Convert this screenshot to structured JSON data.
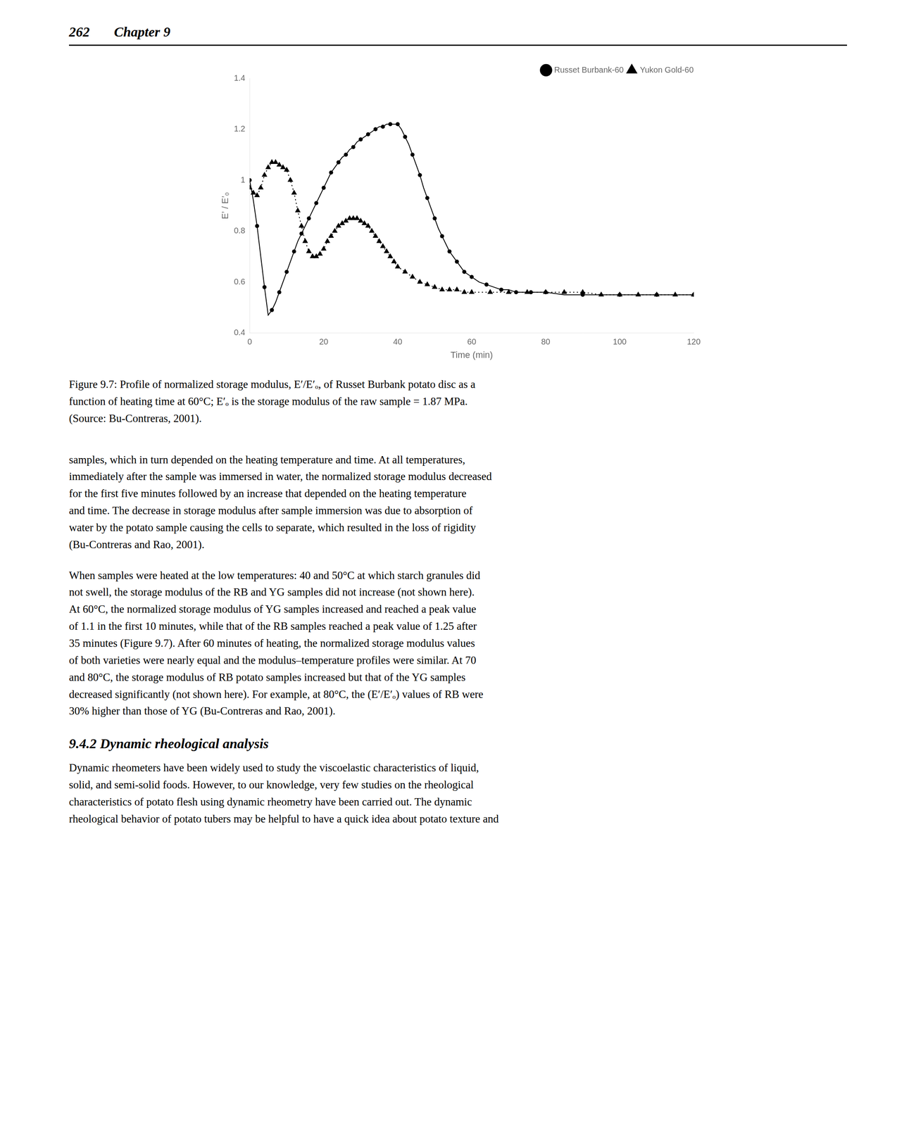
{
  "chart_data": {
    "type": "line",
    "x_label": "Time (min)",
    "y_label": "E’ / E’₀",
    "xlim": [
      0,
      120
    ],
    "ylim": [
      0.4,
      1.4
    ],
    "xticks": [
      0,
      20,
      40,
      60,
      80,
      100,
      120
    ],
    "yticks": [
      0.4,
      0.6,
      0.8,
      1,
      1.2,
      1.4
    ],
    "grid": false,
    "legend": "upper right",
    "series": [
      {
        "name": "Russet Burbank-60",
        "color": "black",
        "marker": "circle",
        "line_style": "solid",
        "x": [
          0,
          1,
          2,
          3,
          4,
          5,
          6,
          7,
          8,
          9,
          10,
          11,
          12,
          13,
          14,
          15,
          16,
          17,
          18,
          19,
          20,
          21,
          22,
          23,
          24,
          25,
          26,
          27,
          28,
          29,
          30,
          31,
          32,
          33,
          34,
          35,
          36,
          37,
          38,
          39,
          40,
          41,
          42,
          43,
          44,
          45,
          46,
          47,
          48,
          49,
          50,
          51,
          52,
          53,
          54,
          55,
          56,
          57,
          58,
          59,
          60,
          62,
          64,
          66,
          68,
          70,
          72,
          74,
          76,
          78,
          80,
          85,
          90,
          95,
          100,
          105,
          110,
          115,
          120
        ],
        "values": [
          1.0,
          0.92,
          0.82,
          0.7,
          0.58,
          0.47,
          0.49,
          0.52,
          0.56,
          0.6,
          0.64,
          0.68,
          0.72,
          0.76,
          0.79,
          0.82,
          0.85,
          0.88,
          0.91,
          0.94,
          0.97,
          1.0,
          1.03,
          1.05,
          1.07,
          1.09,
          1.1,
          1.12,
          1.13,
          1.15,
          1.16,
          1.17,
          1.18,
          1.19,
          1.2,
          1.21,
          1.21,
          1.22,
          1.22,
          1.22,
          1.22,
          1.2,
          1.17,
          1.14,
          1.1,
          1.06,
          1.02,
          0.97,
          0.93,
          0.89,
          0.85,
          0.81,
          0.78,
          0.75,
          0.72,
          0.7,
          0.68,
          0.66,
          0.64,
          0.63,
          0.62,
          0.6,
          0.59,
          0.58,
          0.57,
          0.57,
          0.56,
          0.56,
          0.56,
          0.56,
          0.56,
          0.55,
          0.55,
          0.55,
          0.55,
          0.55,
          0.55,
          0.55,
          0.55
        ]
      },
      {
        "name": "Yukon Gold-60",
        "color": "black",
        "marker": "triangle",
        "line_style": "dotted",
        "x": [
          0,
          1,
          2,
          3,
          4,
          5,
          6,
          7,
          8,
          9,
          10,
          11,
          12,
          13,
          14,
          15,
          16,
          17,
          18,
          19,
          20,
          21,
          22,
          23,
          24,
          25,
          26,
          27,
          28,
          29,
          30,
          31,
          32,
          33,
          34,
          35,
          36,
          37,
          38,
          39,
          40,
          42,
          44,
          46,
          48,
          50,
          52,
          54,
          56,
          58,
          60,
          65,
          70,
          75,
          80,
          85,
          90,
          95,
          100,
          105,
          110,
          115,
          120
        ],
        "values": [
          0.97,
          0.95,
          0.94,
          0.97,
          1.02,
          1.05,
          1.07,
          1.07,
          1.06,
          1.05,
          1.04,
          1.0,
          0.95,
          0.88,
          0.82,
          0.76,
          0.72,
          0.7,
          0.7,
          0.71,
          0.73,
          0.76,
          0.78,
          0.8,
          0.82,
          0.83,
          0.84,
          0.85,
          0.85,
          0.85,
          0.84,
          0.83,
          0.82,
          0.8,
          0.78,
          0.76,
          0.74,
          0.72,
          0.7,
          0.68,
          0.66,
          0.64,
          0.62,
          0.6,
          0.59,
          0.58,
          0.57,
          0.57,
          0.57,
          0.56,
          0.56,
          0.56,
          0.56,
          0.56,
          0.56,
          0.56,
          0.56,
          0.55,
          0.55,
          0.55,
          0.55,
          0.55,
          0.55
        ]
      }
    ],
    "annotations": [
      "262",
      "Chapter 9",
      "Figure 9.7: Profile of normalized storage modulus, E′/E′ₒ, of Russet Burbank potato disc as a\nfunction of heating time at 60°C; E′ₒ is the storage modulus of the raw sample = 1.87 MPa.\n(Source: Bu-Contreras, 2001).",
      "samples, which in turn depended on the heating temperature and time. At all temperatures,\nimmediately after the sample was immersed in water, the normalized storage modulus decreased\nfor the first five minutes followed by an increase that depended on the heating temperature\nand time. The decrease in storage modulus after sample immersion was due to absorption of\nwater by the potato sample causing the cells to separate, which resulted in the loss of rigidity\n(Bu-Contreras and Rao, 2001).",
      "When samples were heated at the low temperatures: 40 and 50°C at which starch granules did\nnot swell, the storage modulus of the RB and YG samples did not increase (not shown here).\nAt 60°C, the normalized storage modulus of YG samples increased and reached a peak value\nof 1.1 in the first 10 minutes, while that of the RB samples reached a peak value of 1.25 after\n35 minutes (Figure 9.7). After 60 minutes of heating, the normalized storage modulus values\nof both varieties were nearly equal and the modulus–temperature profiles were similar. At 70\nand 80°C, the storage modulus of RB potato samples increased but that of the YG samples\ndecreased significantly (not shown here). For example, at 80°C, the (E′/E′ₒ) values of RB were\n30% higher than those of YG (Bu-Contreras and Rao, 2001).",
      "9.4.2  Dynamic rheological analysis",
      "Dynamic rheometers have been widely used to study the viscoelastic characteristics of liquid,\nsolid, and semi-solid foods. However, to our knowledge, very few studies on the rheological\ncharacteristics of potato flesh using dynamic rheometry have been carried out. The dynamic\nrheological behavior of potato tubers may be helpful to have a quick idea about potato texture and"
    ]
  }
}
